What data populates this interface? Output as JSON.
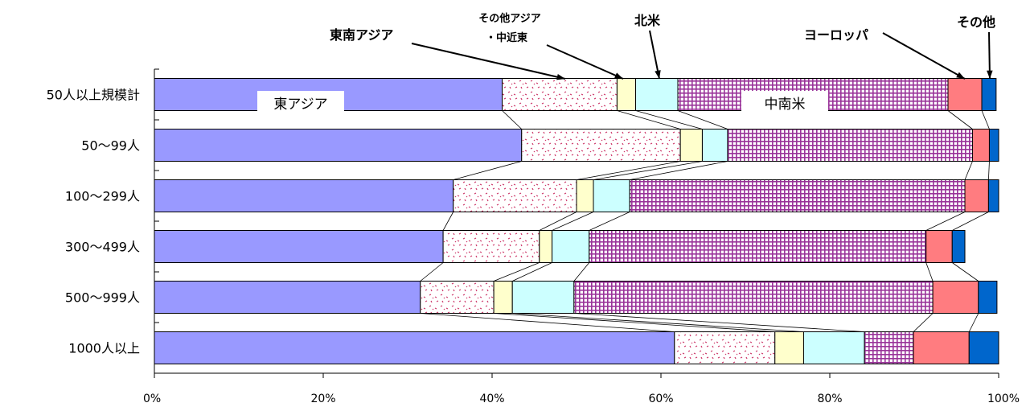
{
  "chart_data": {
    "type": "bar",
    "orientation": "horizontal",
    "stacked": "percent",
    "categories": [
      "50人以上規模計",
      "50〜99人",
      "100〜299人",
      "300〜499人",
      "500〜999人",
      "1000人以上"
    ],
    "x_ticks": [
      "0%",
      "20%",
      "40%",
      "60%",
      "80%",
      "100%"
    ],
    "xlim": [
      0,
      100
    ],
    "series": [
      {
        "name": "東アジア",
        "color": "#9999ff",
        "pattern": "solid",
        "values": [
          41.2,
          43.5,
          35.4,
          34.2,
          31.5,
          61.6
        ]
      },
      {
        "name": "東南アジア",
        "color": "#ff99cc",
        "pattern": "dots",
        "values": [
          13.6,
          18.8,
          14.6,
          11.4,
          8.7,
          11.9
        ]
      },
      {
        "name": "その他アジア・中近東",
        "color": "#ffffcc",
        "pattern": "solid",
        "values": [
          2.2,
          2.6,
          2.0,
          1.5,
          2.2,
          3.4
        ]
      },
      {
        "name": "北米",
        "color": "#ccffff",
        "pattern": "solid",
        "values": [
          5.0,
          3.0,
          4.3,
          4.4,
          7.3,
          7.2
        ]
      },
      {
        "name": "中南米",
        "color": "#993399",
        "pattern": "grid",
        "values": [
          32.0,
          29.0,
          39.7,
          39.9,
          42.5,
          5.8
        ]
      },
      {
        "name": "ヨーロッパ",
        "color": "#ff7c80",
        "pattern": "solid",
        "values": [
          4.0,
          2.0,
          2.8,
          3.1,
          5.4,
          6.6
        ]
      },
      {
        "name": "その他",
        "color": "#0066cc",
        "pattern": "solid",
        "values": [
          1.7,
          1.1,
          1.2,
          1.5,
          2.2,
          3.5
        ]
      }
    ],
    "series_lines": true,
    "annotations": {
      "east_asia": "東アジア",
      "southeast_asia": "東南アジア",
      "other_asia_line1": "その他アジア",
      "other_asia_line2": "・中近東",
      "north_america": "北米",
      "latin_america": "中南米",
      "europe": "ヨーロッパ",
      "other": "その他"
    }
  }
}
